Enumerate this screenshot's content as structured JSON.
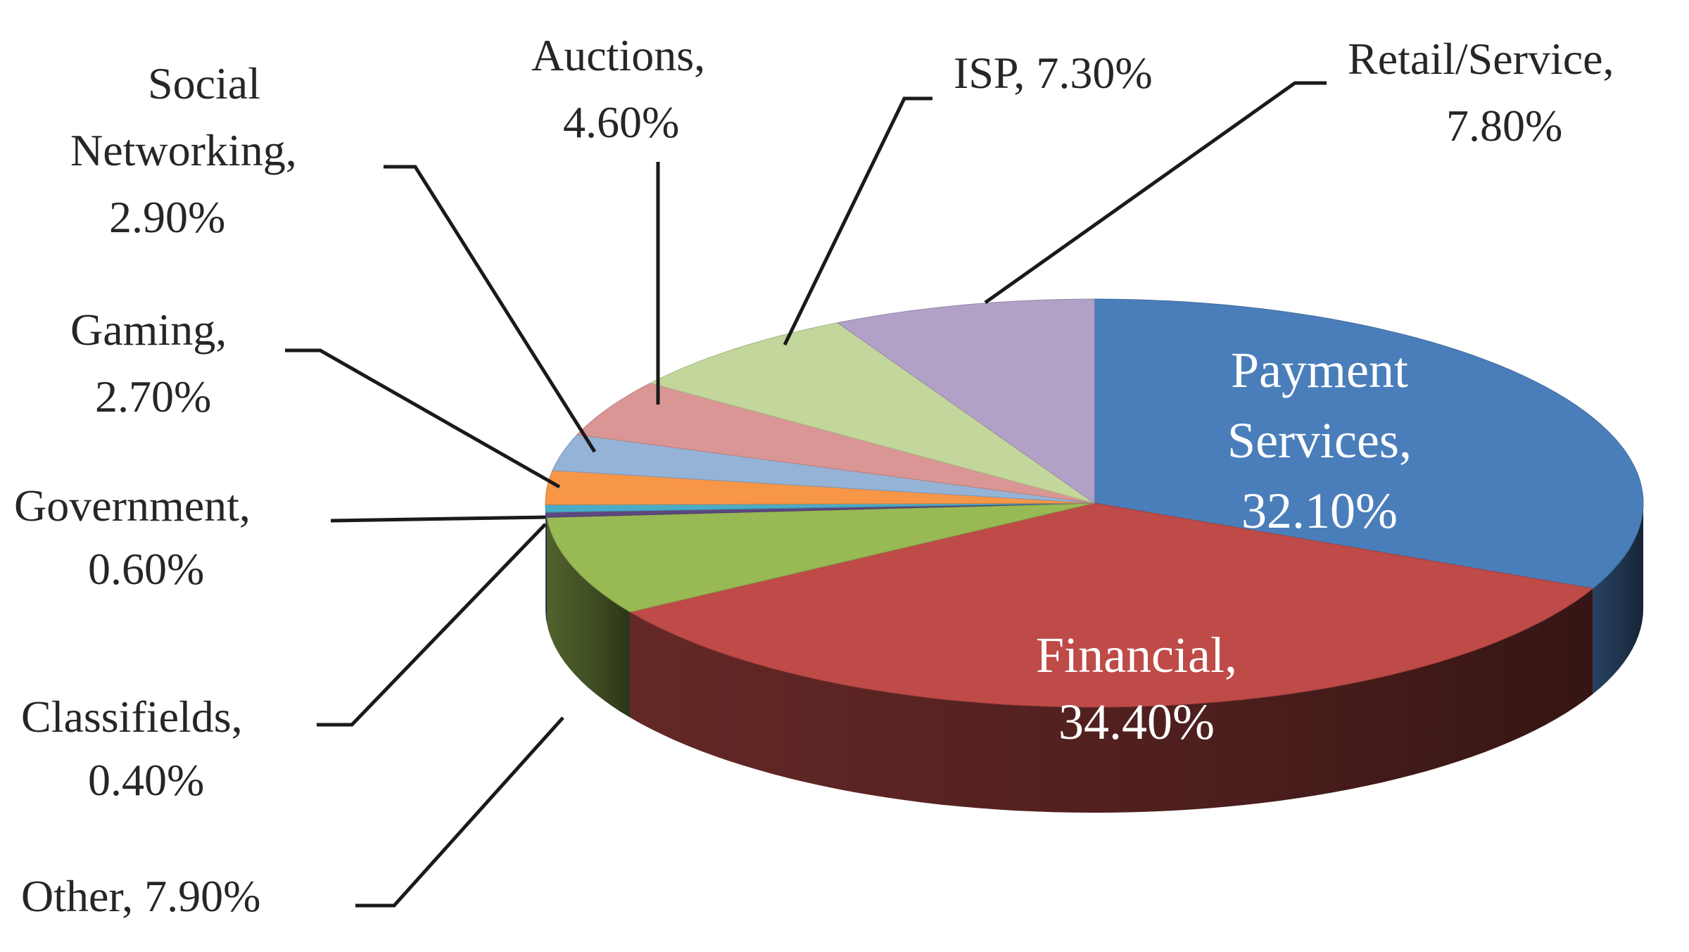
{
  "chart_data": {
    "type": "pie",
    "style": "3d-exploded-perspective",
    "slices": [
      {
        "label": "Payment Services,",
        "value_text": "32.10%",
        "value": 32.1,
        "color": "#4a7ebb"
      },
      {
        "label": "Financial,",
        "value_text": "34.40%",
        "value": 34.4,
        "color": "#be4b48"
      },
      {
        "label": "Other,",
        "value_text": "7.90%",
        "value": 7.9,
        "color": "#98b954"
      },
      {
        "label": "Classifields,",
        "value_text": "0.40%",
        "value": 0.4,
        "color": "#5e4880"
      },
      {
        "label": "Government,",
        "value_text": "0.60%",
        "value": 0.6,
        "color": "#4bacc6"
      },
      {
        "label": "Gaming,",
        "value_text": "2.70%",
        "value": 2.7,
        "color": "#f79646"
      },
      {
        "label": "Social Networking,",
        "value_text": "2.90%",
        "value": 2.9,
        "color": "#95b3d7"
      },
      {
        "label": "Auctions,",
        "value_text": "4.60%",
        "value": 4.6,
        "color": "#da9694"
      },
      {
        "label": "ISP,",
        "value_text": "7.30%",
        "value": 7.3,
        "color": "#c3d69b"
      },
      {
        "label": "Retail/Service,",
        "value_text": "7.80%",
        "value": 7.8,
        "color": "#b2a1c7"
      }
    ]
  }
}
